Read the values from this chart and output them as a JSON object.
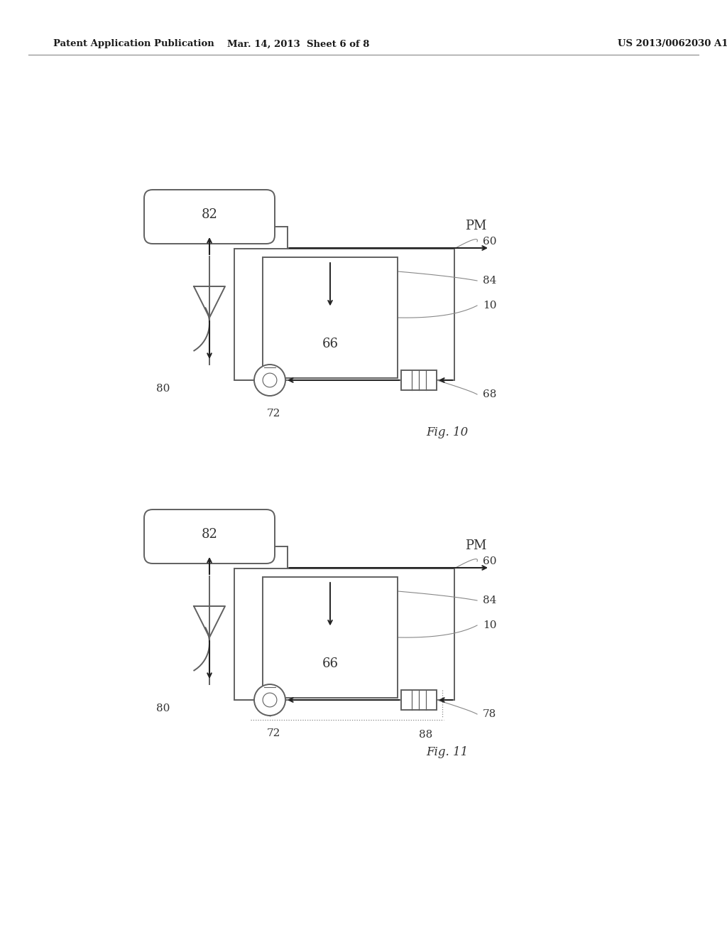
{
  "header_left": "Patent Application Publication",
  "header_center": "Mar. 14, 2013  Sheet 6 of 8",
  "header_right": "US 2013/0062030 A1",
  "fig10_label": "Fig. 10",
  "fig11_label": "Fig. 11",
  "bg_color": "#ffffff",
  "line_color": "#606060",
  "text_color": "#333333"
}
